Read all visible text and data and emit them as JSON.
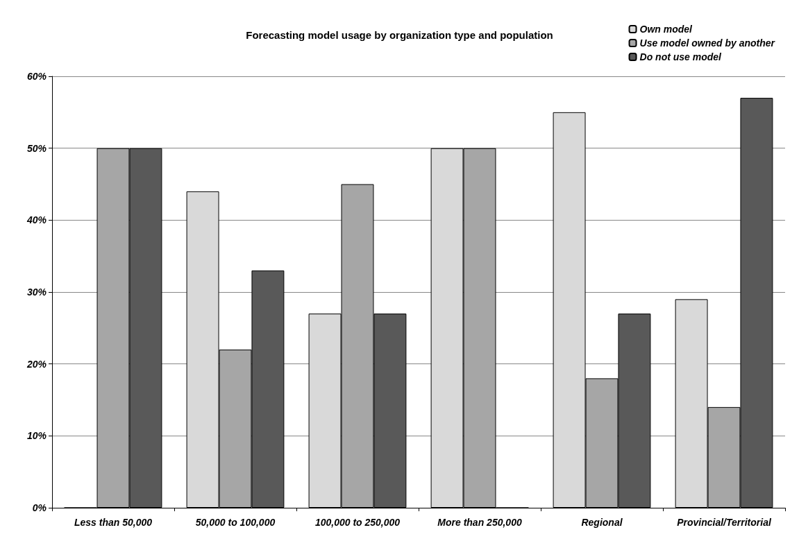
{
  "chart_data": {
    "type": "bar",
    "title": "Forecasting model usage by organization type and population",
    "categories": [
      "Less than 50,000",
      "50,000 to 100,000",
      "100,000 to 250,000",
      "More than 250,000",
      "Regional",
      "Provincial/Territorial"
    ],
    "series": [
      {
        "name": "Own model",
        "color": "#d9d9d9",
        "values": [
          0,
          44,
          27,
          50,
          55,
          29
        ]
      },
      {
        "name": "Use model owned by another",
        "color": "#a6a6a6",
        "values": [
          50,
          22,
          45,
          50,
          18,
          14
        ]
      },
      {
        "name": "Do not use model",
        "color": "#595959",
        "values": [
          50,
          33,
          27,
          0,
          27,
          57
        ]
      }
    ],
    "ylim": [
      0,
      60
    ],
    "yticks": [
      {
        "value": 0,
        "label": "0%"
      },
      {
        "value": 10,
        "label": "10%"
      },
      {
        "value": 20,
        "label": "20%"
      },
      {
        "value": 30,
        "label": "30%"
      },
      {
        "value": 40,
        "label": "40%"
      },
      {
        "value": 50,
        "label": "50%"
      },
      {
        "value": 60,
        "label": "60%"
      }
    ],
    "grid": "y",
    "legend": "top right"
  }
}
